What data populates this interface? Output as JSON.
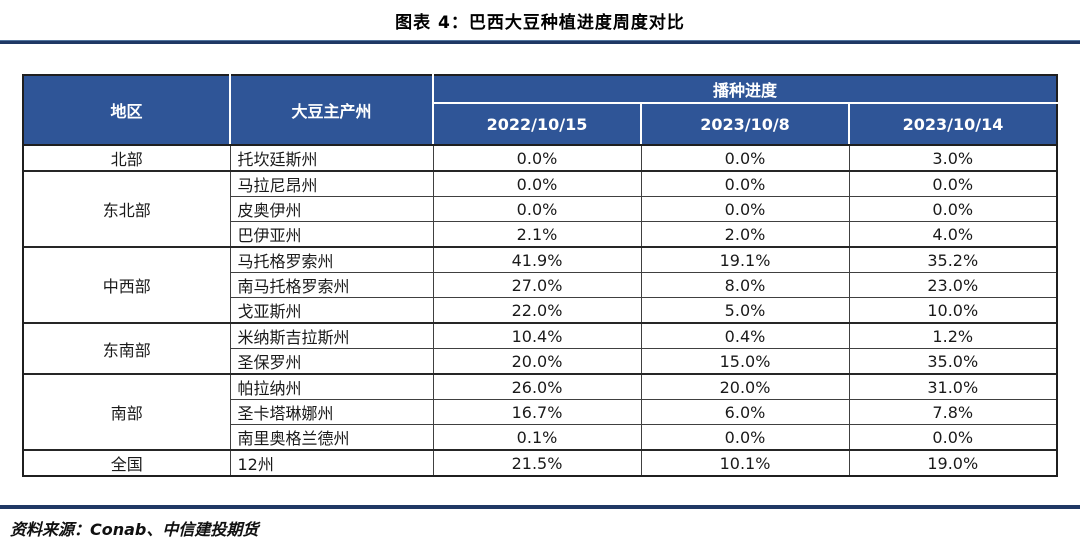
{
  "title": "图表 4：巴西大豆种植进度周度对比",
  "colors": {
    "header_bg": "#2F5597",
    "header_text": "#FFFFFF",
    "rule_navy": "#1F3864",
    "border_dark": "#1f1f1f"
  },
  "chart_data": {
    "type": "table",
    "title": "图表 4：巴西大豆种植进度周度对比",
    "header": {
      "region": "地区",
      "state": "大豆主产州",
      "progress_group": "播种进度",
      "dates": [
        "2022/10/15",
        "2023/10/8",
        "2023/10/14"
      ]
    },
    "groups": [
      {
        "region": "北部",
        "rows": [
          {
            "state": "托坎廷斯州",
            "values": [
              "0.0%",
              "0.0%",
              "3.0%"
            ]
          }
        ]
      },
      {
        "region": "东北部",
        "rows": [
          {
            "state": "马拉尼昂州",
            "values": [
              "0.0%",
              "0.0%",
              "0.0%"
            ]
          },
          {
            "state": "皮奥伊州",
            "values": [
              "0.0%",
              "0.0%",
              "0.0%"
            ]
          },
          {
            "state": "巴伊亚州",
            "values": [
              "2.1%",
              "2.0%",
              "4.0%"
            ]
          }
        ]
      },
      {
        "region": "中西部",
        "rows": [
          {
            "state": "马托格罗索州",
            "values": [
              "41.9%",
              "19.1%",
              "35.2%"
            ]
          },
          {
            "state": "南马托格罗索州",
            "values": [
              "27.0%",
              "8.0%",
              "23.0%"
            ]
          },
          {
            "state": "戈亚斯州",
            "values": [
              "22.0%",
              "5.0%",
              "10.0%"
            ]
          }
        ]
      },
      {
        "region": "东南部",
        "rows": [
          {
            "state": "米纳斯吉拉斯州",
            "values": [
              "10.4%",
              "0.4%",
              "1.2%"
            ]
          },
          {
            "state": "圣保罗州",
            "values": [
              "20.0%",
              "15.0%",
              "35.0%"
            ]
          }
        ]
      },
      {
        "region": "南部",
        "rows": [
          {
            "state": "帕拉纳州",
            "values": [
              "26.0%",
              "20.0%",
              "31.0%"
            ]
          },
          {
            "state": "圣卡塔琳娜州",
            "values": [
              "16.7%",
              "6.0%",
              "7.8%"
            ]
          },
          {
            "state": "南里奥格兰德州",
            "values": [
              "0.1%",
              "0.0%",
              "0.0%"
            ]
          }
        ]
      },
      {
        "region": "全国",
        "rows": [
          {
            "state": "12州",
            "values": [
              "21.5%",
              "10.1%",
              "19.0%"
            ]
          }
        ]
      }
    ]
  },
  "footer": {
    "source_text": "资料来源：Conab、中信建投期货"
  }
}
